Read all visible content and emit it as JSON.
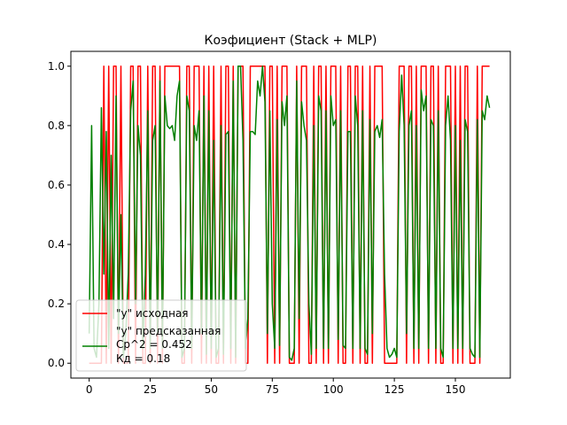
{
  "chart_data": {
    "type": "line",
    "title": "Коэфициент (Stack + MLP)",
    "xlabel": "",
    "ylabel": "",
    "xlim": [
      -7.5,
      172.5
    ],
    "ylim": [
      -0.05,
      1.05
    ],
    "xticks": [
      0,
      25,
      50,
      75,
      100,
      125,
      150
    ],
    "xtick_labels": [
      "0",
      "25",
      "50",
      "75",
      "100",
      "125",
      "150"
    ],
    "yticks": [
      0.0,
      0.2,
      0.4,
      0.6,
      0.8,
      1.0
    ],
    "ytick_labels": [
      "0.0",
      "0.2",
      "0.4",
      "0.6",
      "0.8",
      "1.0"
    ],
    "grid": false,
    "legend": {
      "position": "lower-left",
      "entries": [
        {
          "label": "\"y\" исходная",
          "color": "#ff0000",
          "swatch": true
        },
        {
          "label": "\"y\" предсказанная\nCp^2 = 0.452\nКд = 0.18",
          "color": "#008000",
          "swatch": true
        }
      ]
    },
    "series": [
      {
        "color": "#ff0000",
        "x": [
          0,
          1,
          2,
          3,
          4,
          5,
          6,
          7,
          8,
          9,
          10,
          11,
          12,
          13,
          14,
          15,
          16,
          17,
          18,
          19,
          20,
          21,
          22,
          23,
          24,
          25,
          26,
          27,
          28,
          29,
          30,
          31,
          32,
          33,
          34,
          35,
          36,
          37,
          38,
          39,
          40,
          41,
          42,
          43,
          44,
          45,
          46,
          47,
          48,
          49,
          50,
          51,
          52,
          53,
          54,
          55,
          56,
          57,
          58,
          59,
          60,
          61,
          62,
          63,
          64,
          65,
          66,
          67,
          68,
          69,
          70,
          71,
          72,
          73,
          74,
          75,
          76,
          77,
          78,
          79,
          80,
          81,
          82,
          83,
          84,
          85,
          86,
          87,
          88,
          89,
          90,
          91,
          92,
          93,
          94,
          95,
          96,
          97,
          98,
          99,
          100,
          101,
          102,
          103,
          104,
          105,
          106,
          107,
          108,
          109,
          110,
          111,
          112,
          113,
          114,
          115,
          116,
          117,
          118,
          119,
          120,
          121,
          122,
          123,
          124,
          125,
          126,
          127,
          128,
          129,
          130,
          131,
          132,
          133,
          134,
          135,
          136,
          137,
          138,
          139,
          140,
          141,
          142,
          143,
          144,
          145,
          146,
          147,
          148,
          149,
          150,
          151,
          152,
          153,
          154,
          155,
          156,
          157,
          158,
          159,
          160,
          161,
          162,
          163,
          164
        ],
        "values": [
          0,
          0,
          0,
          0,
          0,
          0,
          1,
          0,
          1,
          0,
          1,
          1,
          0,
          1,
          0,
          0,
          0,
          1,
          1,
          0,
          1,
          1,
          0,
          0,
          1,
          0,
          1,
          1,
          0,
          1,
          0,
          1,
          1,
          1,
          1,
          1,
          1,
          1,
          0,
          0,
          1,
          1,
          0,
          1,
          1,
          1,
          0,
          1,
          0,
          1,
          0,
          1,
          0,
          0,
          1,
          0,
          1,
          1,
          0,
          1,
          0,
          1,
          1,
          1,
          0,
          0,
          1,
          1,
          1,
          1,
          1,
          1,
          1,
          0,
          1,
          1,
          0,
          1,
          0,
          1,
          1,
          1,
          0,
          0,
          0,
          1,
          0,
          1,
          1,
          1,
          0,
          0,
          1,
          0,
          1,
          1,
          0,
          1,
          0,
          1,
          1,
          1,
          0,
          1,
          0,
          0,
          1,
          1,
          0,
          1,
          1,
          0,
          1,
          0,
          0,
          1,
          0,
          1,
          1,
          1,
          1,
          0,
          0,
          0,
          0,
          0,
          0,
          1,
          1,
          1,
          0,
          1,
          1,
          0,
          1,
          0,
          1,
          1,
          1,
          0,
          1,
          1,
          0,
          1,
          0,
          0,
          1,
          1,
          1,
          0,
          1,
          0,
          1,
          0,
          1,
          1,
          0,
          0,
          0,
          1,
          0,
          1,
          1,
          1,
          1
        ]
      },
      {
        "color": "#008000",
        "x": [
          0,
          1,
          2,
          3,
          4,
          5,
          6,
          7,
          8,
          9,
          10,
          11,
          12,
          13,
          14,
          15,
          16,
          17,
          18,
          19,
          20,
          21,
          22,
          23,
          24,
          25,
          26,
          27,
          28,
          29,
          30,
          31,
          32,
          33,
          34,
          35,
          36,
          37,
          38,
          39,
          40,
          41,
          42,
          43,
          44,
          45,
          46,
          47,
          48,
          49,
          50,
          51,
          52,
          53,
          54,
          55,
          56,
          57,
          58,
          59,
          60,
          61,
          62,
          63,
          64,
          65,
          66,
          67,
          68,
          69,
          70,
          71,
          72,
          73,
          74,
          75,
          76,
          77,
          78,
          79,
          80,
          81,
          82,
          83,
          84,
          85,
          86,
          87,
          88,
          89,
          90,
          91,
          92,
          93,
          94,
          95,
          96,
          97,
          98,
          99,
          100,
          101,
          102,
          103,
          104,
          105,
          106,
          107,
          108,
          109,
          110,
          111,
          112,
          113,
          114,
          115,
          116,
          117,
          118,
          119,
          120,
          121,
          122,
          123,
          124,
          125,
          126,
          127,
          128,
          129,
          130,
          131,
          132,
          133,
          134,
          135,
          136,
          137,
          138,
          139,
          140,
          141,
          142,
          143,
          144,
          145,
          146,
          147,
          148,
          149,
          150,
          151,
          152,
          153,
          154,
          155,
          156,
          157,
          158,
          159,
          160,
          161,
          162,
          163,
          164
        ],
        "values": [
          0.1,
          0.8,
          0.05,
          0.02,
          0.2,
          0.86,
          0.3,
          0.78,
          0.05,
          0.7,
          0.15,
          0.9,
          0.1,
          0.5,
          0.02,
          0.1,
          0.3,
          0.85,
          0.95,
          0.2,
          0.8,
          0.7,
          0.05,
          0.3,
          0.85,
          0.05,
          0.75,
          0.8,
          0.1,
          0.95,
          0.05,
          0.9,
          0.8,
          0.79,
          0.8,
          0.75,
          0.9,
          0.95,
          0.02,
          0.05,
          0.9,
          0.85,
          0.05,
          0.8,
          0.75,
          0.85,
          0.1,
          0.9,
          0.03,
          0.85,
          0.05,
          0.75,
          0.02,
          0.05,
          0.8,
          0.03,
          0.77,
          0.78,
          0.05,
          0.95,
          0.02,
          1.0,
          1.0,
          0.75,
          0.05,
          0.15,
          0.78,
          0.78,
          0.77,
          0.95,
          0.9,
          1.0,
          0.88,
          0.1,
          0.85,
          0.2,
          0.05,
          0.82,
          0.06,
          0.88,
          0.8,
          0.9,
          0.02,
          0.01,
          0.05,
          0.95,
          0.15,
          0.88,
          0.8,
          0.75,
          0.2,
          0.03,
          0.8,
          0.05,
          0.9,
          0.85,
          0.05,
          0.85,
          0.05,
          0.9,
          0.8,
          0.82,
          0.08,
          0.85,
          0.06,
          0.05,
          0.78,
          0.78,
          0.05,
          0.9,
          0.8,
          0.05,
          0.85,
          0.05,
          0.03,
          0.82,
          0.1,
          0.78,
          0.8,
          0.76,
          0.82,
          0.3,
          0.05,
          0.02,
          0.03,
          0.05,
          0.02,
          0.78,
          0.97,
          0.8,
          0.1,
          0.8,
          0.85,
          0.05,
          0.8,
          0.05,
          0.92,
          0.85,
          0.9,
          0.05,
          0.82,
          0.8,
          0.05,
          0.85,
          0.05,
          0.02,
          0.8,
          0.9,
          0.75,
          0.05,
          0.8,
          0.05,
          0.75,
          0.05,
          0.82,
          0.78,
          0.05,
          0.03,
          0.02,
          0.82,
          0.02,
          0.85,
          0.82,
          0.9,
          0.86
        ]
      }
    ]
  }
}
